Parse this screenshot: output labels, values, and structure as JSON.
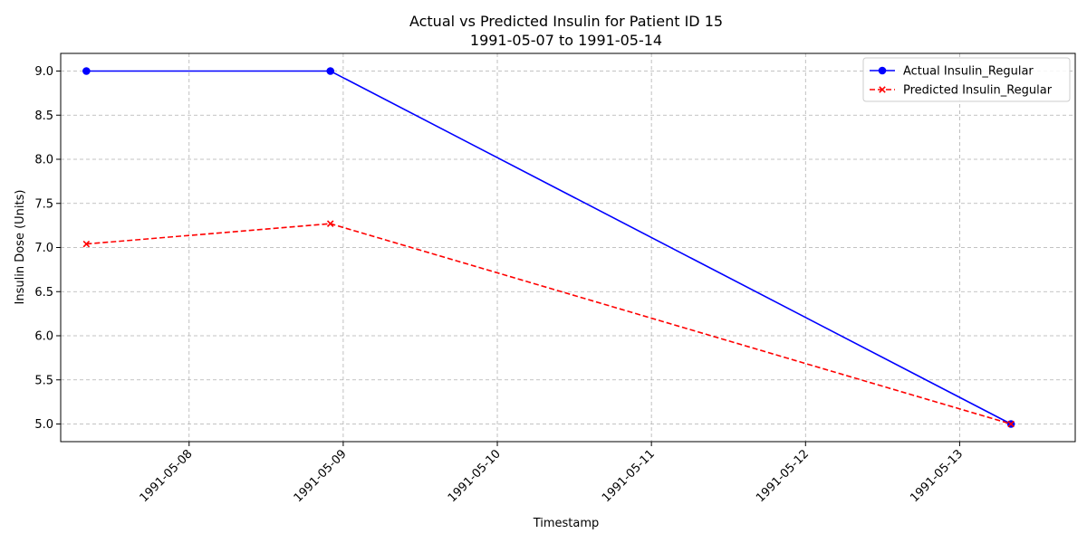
{
  "chart_data": {
    "type": "line",
    "title": "Actual vs Predicted Insulin for Patient ID 15",
    "subtitle": "1991-05-07 to 1991-05-14",
    "xlabel": "Timestamp",
    "ylabel": "Insulin Dose (Units)",
    "xlim": [
      "1991-05-07 04:00",
      "1991-05-13 18:00"
    ],
    "ylim": [
      4.8,
      9.2
    ],
    "x_ticks": [
      "1991-05-08",
      "1991-05-09",
      "1991-05-10",
      "1991-05-11",
      "1991-05-12",
      "1991-05-13"
    ],
    "y_ticks": [
      "5.0",
      "5.5",
      "6.0",
      "6.5",
      "7.0",
      "7.5",
      "8.0",
      "8.5",
      "9.0"
    ],
    "grid": true,
    "legend_position": "top-right",
    "series": [
      {
        "name": "Actual Insulin_Regular",
        "color": "#0000ff",
        "style": "solid",
        "marker": "circle",
        "x": [
          "1991-05-07 08:00",
          "1991-05-08 22:00",
          "1991-05-13 08:00"
        ],
        "y": [
          9.0,
          9.0,
          5.0
        ]
      },
      {
        "name": "Predicted Insulin_Regular",
        "color": "#ff0000",
        "style": "dashed",
        "marker": "x",
        "x": [
          "1991-05-07 08:00",
          "1991-05-08 22:00",
          "1991-05-13 08:00"
        ],
        "y": [
          7.04,
          7.27,
          5.0
        ]
      }
    ]
  }
}
